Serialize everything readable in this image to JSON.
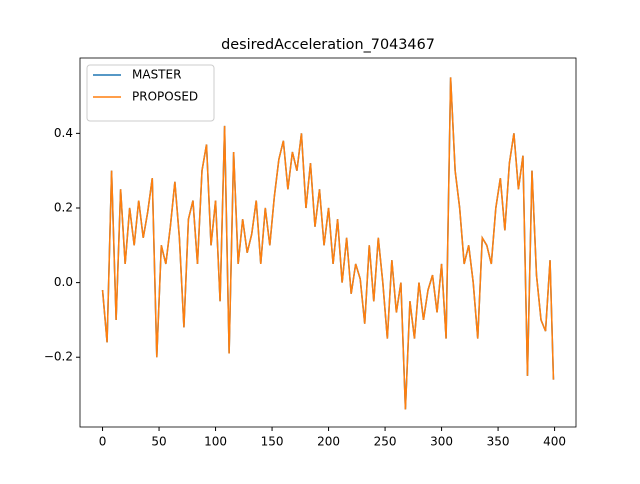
{
  "chart_data": {
    "type": "line",
    "title": "desiredAcceleration_7043467",
    "x": [
      0,
      4,
      8,
      12,
      16,
      20,
      24,
      28,
      32,
      36,
      40,
      44,
      48,
      52,
      56,
      60,
      64,
      68,
      72,
      76,
      80,
      84,
      88,
      92,
      96,
      100,
      104,
      108,
      112,
      116,
      120,
      124,
      128,
      132,
      136,
      140,
      144,
      148,
      152,
      156,
      160,
      164,
      168,
      172,
      176,
      180,
      184,
      188,
      192,
      196,
      200,
      204,
      208,
      212,
      216,
      220,
      224,
      228,
      232,
      236,
      240,
      244,
      248,
      252,
      256,
      260,
      264,
      268,
      272,
      276,
      280,
      284,
      288,
      292,
      296,
      300,
      304,
      308,
      312,
      316,
      320,
      324,
      328,
      332,
      336,
      340,
      344,
      348,
      352,
      356,
      360,
      364,
      368,
      372,
      376,
      380,
      384,
      388,
      392,
      396,
      399
    ],
    "series": [
      {
        "name": "MASTER",
        "color": "#1f77b4",
        "values": [
          -0.02,
          -0.16,
          0.3,
          -0.1,
          0.25,
          0.05,
          0.2,
          0.1,
          0.22,
          0.12,
          0.19,
          0.28,
          -0.2,
          0.1,
          0.05,
          0.15,
          0.27,
          0.12,
          -0.12,
          0.17,
          0.22,
          0.05,
          0.3,
          0.37,
          0.1,
          0.22,
          -0.05,
          0.42,
          -0.19,
          0.35,
          0.05,
          0.17,
          0.08,
          0.13,
          0.22,
          0.05,
          0.2,
          0.1,
          0.23,
          0.33,
          0.38,
          0.25,
          0.35,
          0.3,
          0.4,
          0.2,
          0.32,
          0.15,
          0.25,
          0.1,
          0.2,
          0.05,
          0.17,
          0.0,
          0.12,
          -0.03,
          0.05,
          0.01,
          -0.11,
          0.1,
          -0.05,
          0.12,
          0.0,
          -0.15,
          0.06,
          -0.08,
          0.0,
          -0.34,
          -0.05,
          -0.15,
          0.0,
          -0.1,
          -0.02,
          0.02,
          -0.08,
          0.05,
          -0.15,
          0.55,
          0.3,
          0.2,
          0.05,
          0.1,
          0.0,
          -0.15,
          0.12,
          0.1,
          0.05,
          0.2,
          0.28,
          0.14,
          0.32,
          0.4,
          0.25,
          0.34,
          -0.25,
          0.3,
          0.02,
          -0.1,
          -0.13,
          0.06,
          -0.26
        ]
      },
      {
        "name": "PROPOSED",
        "color": "#ff7f0e",
        "values": [
          -0.02,
          -0.16,
          0.3,
          -0.1,
          0.25,
          0.05,
          0.2,
          0.1,
          0.22,
          0.12,
          0.19,
          0.28,
          -0.2,
          0.1,
          0.05,
          0.15,
          0.27,
          0.12,
          -0.12,
          0.17,
          0.22,
          0.05,
          0.3,
          0.37,
          0.1,
          0.22,
          -0.05,
          0.42,
          -0.19,
          0.35,
          0.05,
          0.17,
          0.08,
          0.13,
          0.22,
          0.05,
          0.2,
          0.1,
          0.23,
          0.33,
          0.38,
          0.25,
          0.35,
          0.3,
          0.4,
          0.2,
          0.32,
          0.15,
          0.25,
          0.1,
          0.2,
          0.05,
          0.17,
          0.0,
          0.12,
          -0.03,
          0.05,
          0.01,
          -0.11,
          0.1,
          -0.05,
          0.12,
          0.0,
          -0.15,
          0.06,
          -0.08,
          0.0,
          -0.34,
          -0.05,
          -0.15,
          0.0,
          -0.1,
          -0.02,
          0.02,
          -0.08,
          0.05,
          -0.15,
          0.55,
          0.3,
          0.2,
          0.05,
          0.1,
          0.0,
          -0.15,
          0.12,
          0.1,
          0.05,
          0.2,
          0.28,
          0.14,
          0.32,
          0.4,
          0.25,
          0.34,
          -0.25,
          0.3,
          0.02,
          -0.1,
          -0.13,
          0.06,
          -0.26
        ]
      }
    ],
    "xlim": [
      -19.95,
      418.95
    ],
    "xticks": [
      0,
      50,
      100,
      150,
      200,
      250,
      300,
      350,
      400
    ],
    "ylim": [
      -0.387,
      0.602
    ],
    "yticks": [
      {
        "value": -0.2,
        "label": "−0.2"
      },
      {
        "value": 0,
        "label": "0.0"
      },
      0.2,
      0.4
    ],
    "legend": "upper left"
  }
}
